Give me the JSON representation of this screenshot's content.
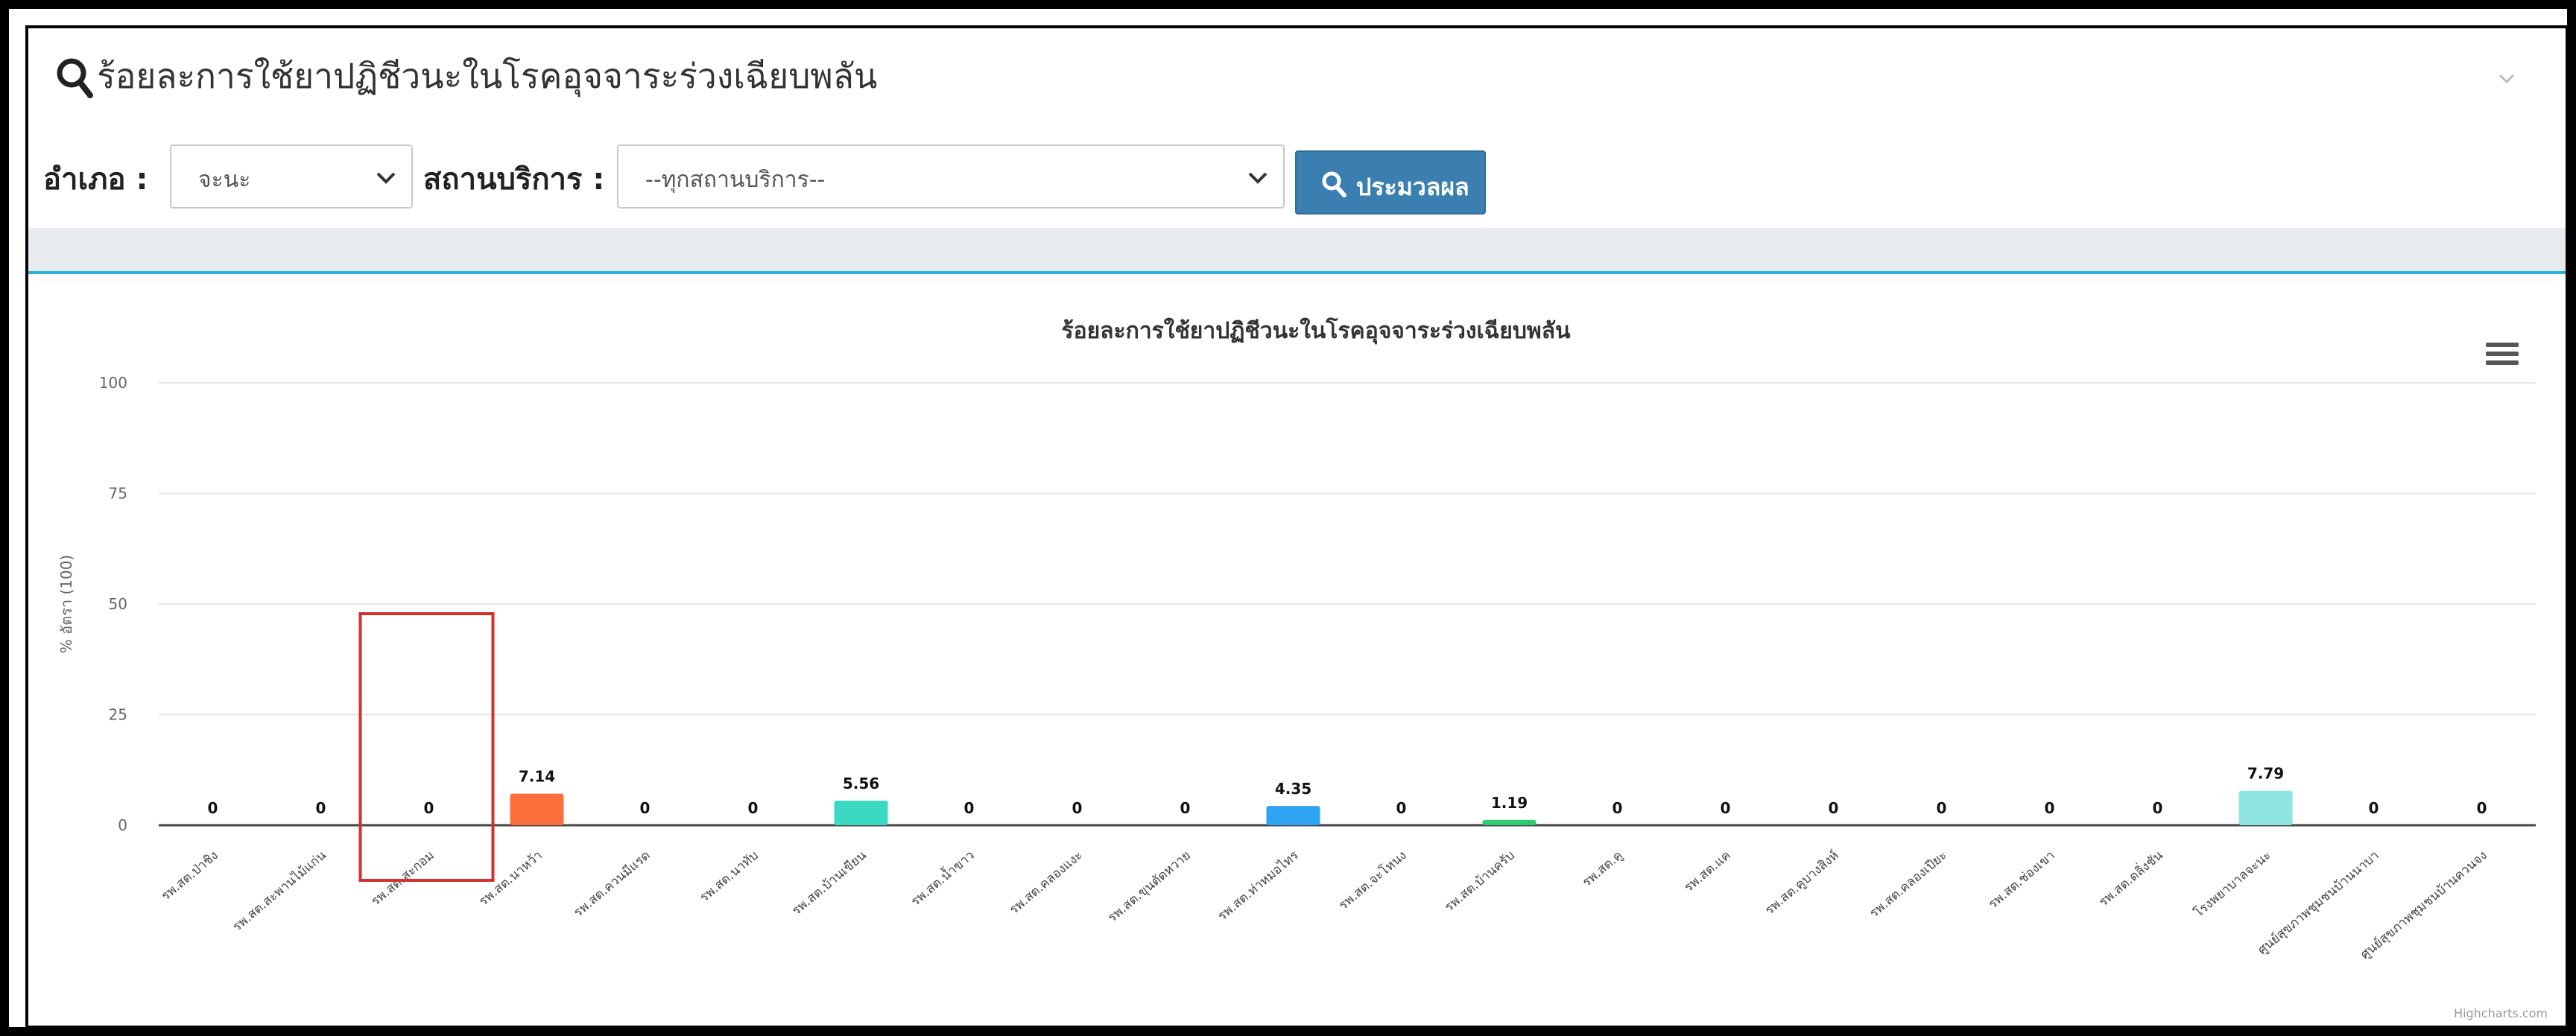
{
  "panel": {
    "title": "ร้อยละการใช้ยาปฏิชีวนะในโรคอุจจาระร่วงเฉียบพลัน"
  },
  "filters": {
    "district_label": "อำเภอ :",
    "district_value": "จะนะ",
    "service_label": "สถานบริการ :",
    "service_value": "--ทุกสถานบริการ--",
    "run_button": "ประมวลผล"
  },
  "icons": {
    "title": "search-icon",
    "collapse": "chevron-down-icon",
    "menu": "hamburger-menu-icon",
    "run": "search-icon"
  },
  "colors": {
    "accent": "#3a7fb0",
    "band_border": "#2bb2d6",
    "highlight_box": "#d32f2f"
  },
  "chart_data": {
    "type": "bar",
    "title": "ร้อยละการใช้ยาปฏิชีวนะในโรคอุจจาระร่วงเฉียบพลัน",
    "ylabel": "% อัตรา (100)",
    "xlabel": "",
    "ylim": [
      0,
      100
    ],
    "yticks": [
      0,
      25,
      50,
      75,
      100
    ],
    "grid": true,
    "legend": "none",
    "credits": "Highcharts.com",
    "categories": [
      "รพ.สต.ป่าชิง",
      "รพ.สต.สะพานไม้แก่น",
      "รพ.สต.สะกอม",
      "รพ.สต.นาหว้า",
      "รพ.สต.ควนมีแรด",
      "รพ.สต.นาทับ",
      "รพ.สต.บ้านเขียน",
      "รพ.สต.น้ำขาว",
      "รพ.สต.คลองแงะ",
      "รพ.สต.ขุนตัดหวาย",
      "รพ.สต.ท่าหมอไทร",
      "รพ.สต.จะโหนง",
      "รพ.สต.บ้านครับ",
      "รพ.สต.คู",
      "รพ.สต.แค",
      "รพ.สต.คูบางสิงห์",
      "รพ.สต.คลองเปียะ",
      "รพ.สต.ช่องเขา",
      "รพ.สต.ตลิ่งชัน",
      "โรงพยาบาลจะนะ",
      "ศูนย์สุขภาพชุมชนบ้านนาบา",
      "ศูนย์สุขภาพชุมชนบ้านควนจง"
    ],
    "values": [
      0,
      0,
      0,
      7.14,
      0,
      0,
      5.56,
      0,
      0,
      0,
      4.35,
      0,
      1.19,
      0,
      0,
      0,
      0,
      0,
      0,
      7.79,
      0,
      0
    ],
    "bar_colors": {
      "3": "#fd6f3d",
      "6": "#3bd8c4",
      "10": "#2ea3f2",
      "12": "#2ecc71",
      "19": "#8ee5e0"
    },
    "highlighted_category": "รพ.สต.สะกอม"
  }
}
